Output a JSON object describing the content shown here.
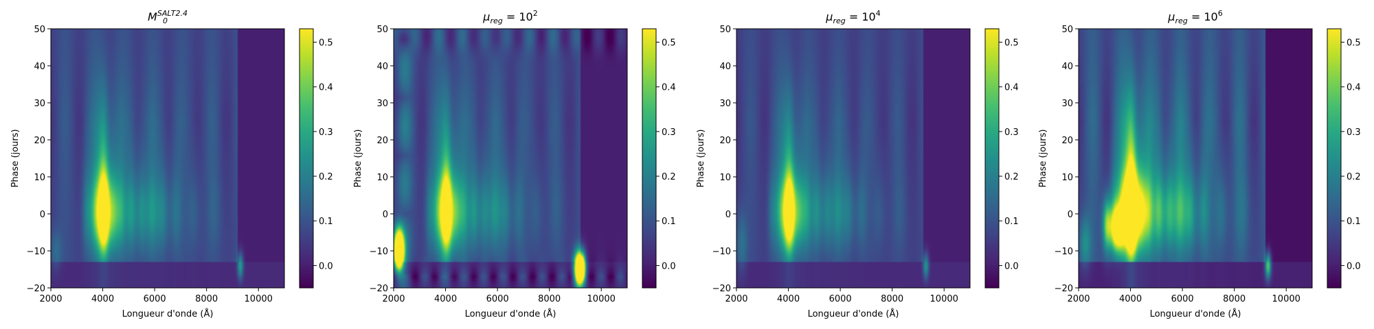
{
  "figure": {
    "colorbar_ticks": [
      "0.0",
      "0.1",
      "0.2",
      "0.3",
      "0.4",
      "0.5"
    ],
    "colormap": "viridis"
  },
  "chart_data": [
    {
      "type": "heatmap",
      "title_base": "M",
      "title_sub": "0",
      "title_sup": "SALT2.4",
      "xlabel": "Longueur d'onde (Å)",
      "ylabel": "Phase (jours)",
      "xlim": [
        2000,
        11000
      ],
      "ylim": [
        -20,
        50
      ],
      "xticks": [
        2000,
        4000,
        6000,
        8000,
        10000
      ],
      "yticks": [
        -20,
        -10,
        0,
        10,
        20,
        30,
        40,
        50
      ],
      "clim": [
        -0.05,
        0.53
      ],
      "colorbar_ticks": [
        0.0,
        0.1,
        0.2,
        0.3,
        0.4,
        0.5
      ],
      "variant": 0,
      "peak_value": 0.5
    },
    {
      "type": "heatmap",
      "title_base": "μ",
      "title_sub": "reg",
      "title_eq": " = 10",
      "title_sup": "2",
      "xlabel": "Longueur d'onde (Å)",
      "ylabel": "Phase (jours)",
      "xlim": [
        2000,
        11000
      ],
      "ylim": [
        -20,
        50
      ],
      "xticks": [
        2000,
        4000,
        6000,
        8000,
        10000
      ],
      "yticks": [
        -20,
        -10,
        0,
        10,
        20,
        30,
        40,
        50
      ],
      "clim": [
        -0.05,
        0.53
      ],
      "colorbar_ticks": [
        0.0,
        0.1,
        0.2,
        0.3,
        0.4,
        0.5
      ],
      "variant": 1,
      "peak_value": 0.53
    },
    {
      "type": "heatmap",
      "title_base": "μ",
      "title_sub": "reg",
      "title_eq": " = 10",
      "title_sup": "4",
      "xlabel": "Longueur d'onde (Å)",
      "ylabel": "Phase (jours)",
      "xlim": [
        2000,
        11000
      ],
      "ylim": [
        -20,
        50
      ],
      "xticks": [
        2000,
        4000,
        6000,
        8000,
        10000
      ],
      "yticks": [
        -20,
        -10,
        0,
        10,
        20,
        30,
        40,
        50
      ],
      "clim": [
        -0.05,
        0.53
      ],
      "colorbar_ticks": [
        0.0,
        0.1,
        0.2,
        0.3,
        0.4,
        0.5
      ],
      "variant": 2,
      "peak_value": 0.45
    },
    {
      "type": "heatmap",
      "title_base": "μ",
      "title_sub": "reg",
      "title_eq": " = 10",
      "title_sup": "6",
      "xlabel": "Longueur d'onde (Å)",
      "ylabel": "Phase (jours)",
      "xlim": [
        2000,
        11000
      ],
      "ylim": [
        -20,
        50
      ],
      "xticks": [
        2000,
        4000,
        6000,
        8000,
        10000
      ],
      "yticks": [
        -20,
        -10,
        0,
        10,
        20,
        30,
        40,
        50
      ],
      "clim": [
        -0.05,
        0.53
      ],
      "colorbar_ticks": [
        0.0,
        0.1,
        0.2,
        0.3,
        0.4,
        0.5
      ],
      "variant": 3,
      "peak_value": 0.53
    }
  ]
}
